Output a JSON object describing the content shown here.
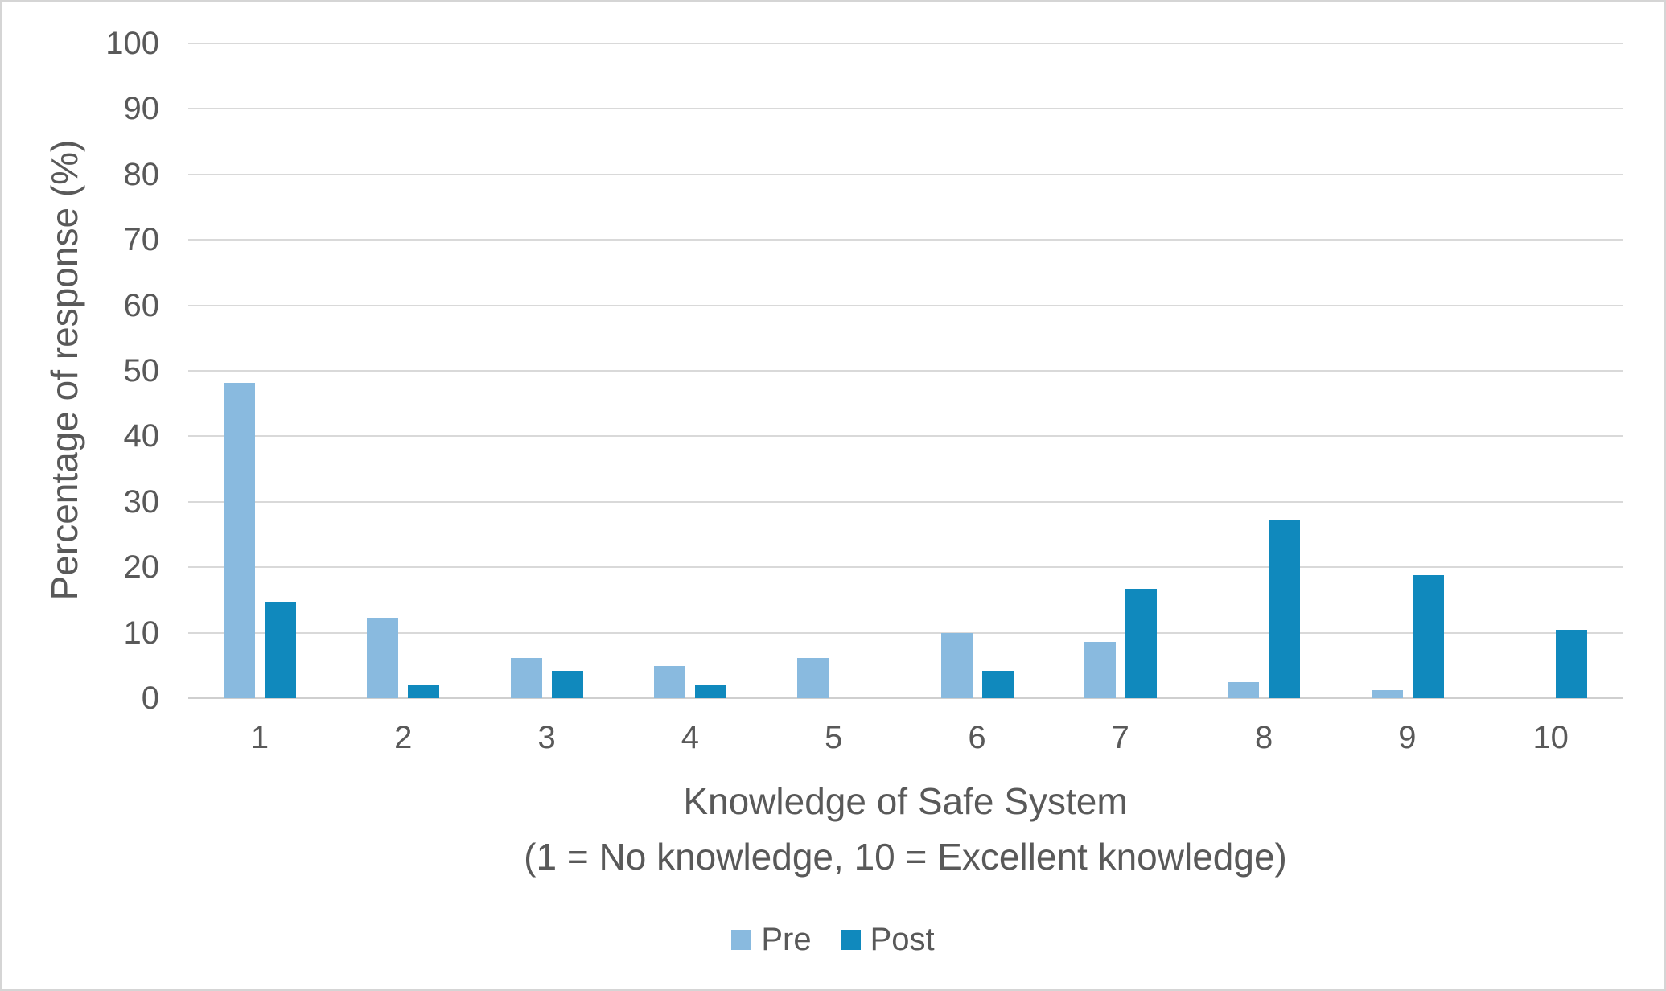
{
  "chart_data": {
    "type": "bar",
    "title": "",
    "categories": [
      "1",
      "2",
      "3",
      "4",
      "5",
      "6",
      "7",
      "8",
      "9",
      "10"
    ],
    "series": [
      {
        "name": "Pre",
        "color": "#89BADF",
        "values": [
          48.1,
          12.3,
          6.2,
          4.9,
          6.2,
          9.9,
          8.6,
          2.5,
          1.2,
          0
        ]
      },
      {
        "name": "Post",
        "color": "#1089BD",
        "values": [
          14.6,
          2.1,
          4.2,
          2.1,
          0,
          4.2,
          16.7,
          27.1,
          18.8,
          10.4
        ]
      }
    ],
    "xlabel": "Knowledge of Safe System",
    "xlabel_line2": "(1 = No knowledge, 10 = Excellent knowledge)",
    "ylabel": "Percentage of response (%)",
    "ylim": [
      0,
      100
    ],
    "yticks": [
      0,
      10,
      20,
      30,
      40,
      50,
      60,
      70,
      80,
      90,
      100
    ],
    "grid": true,
    "legend_position": "bottom"
  },
  "styles": {
    "text_color": "#595959",
    "gridline_color": "#D9D9D9",
    "axis_line_color": "#CFCFCF",
    "background": "#FFFFFF",
    "border_color": "#D5D5D5"
  }
}
